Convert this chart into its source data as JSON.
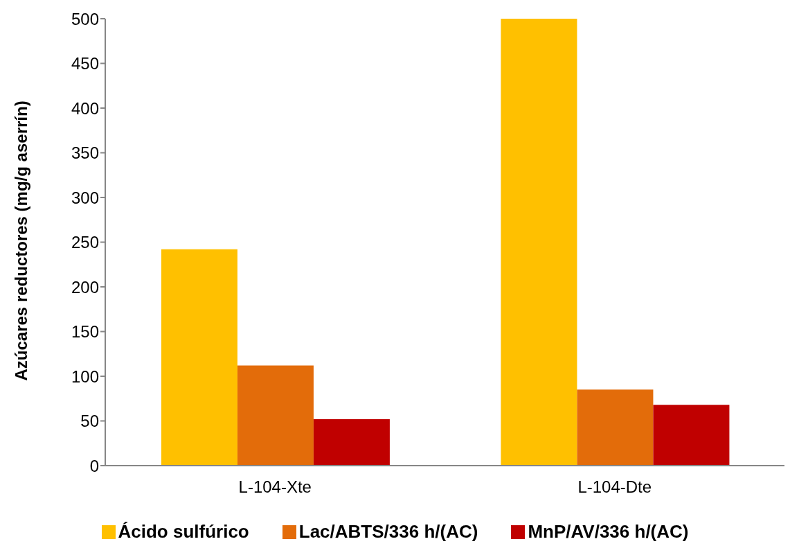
{
  "chart_data": {
    "type": "bar",
    "ylabel": "Azúcares reductores (mg/g aserrín)",
    "categories": [
      "L-104-Xte",
      "L-104-Dte"
    ],
    "series": [
      {
        "name": "Ácido sulfúrico",
        "color": "#ffc000",
        "values": [
          242,
          500
        ]
      },
      {
        "name": "Lac/ABTS/336 h/(AC)",
        "color": "#e36c0a",
        "values": [
          112,
          85
        ]
      },
      {
        "name": "MnP/AV/336 h/(AC)",
        "color": "#c00000",
        "values": [
          52,
          68
        ]
      }
    ],
    "ylim": [
      0,
      500
    ],
    "yticks": [
      0,
      50,
      100,
      150,
      200,
      250,
      300,
      350,
      400,
      450,
      500
    ],
    "grid": false,
    "legend": "bottom"
  }
}
